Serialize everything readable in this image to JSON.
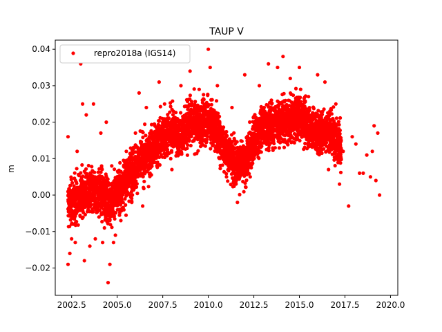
{
  "chart_data": {
    "type": "scatter",
    "title": "TAUP V",
    "xlabel": "",
    "ylabel": "m",
    "xlim": [
      2001.6,
      2020.4
    ],
    "ylim": [
      -0.0275,
      0.0425
    ],
    "x_ticks": [
      2002.5,
      2005.0,
      2007.5,
      2010.0,
      2012.5,
      2015.0,
      2017.5,
      2020.0
    ],
    "x_tick_labels": [
      "2002.5",
      "2005.0",
      "2007.5",
      "2010.0",
      "2012.5",
      "2015.0",
      "2017.5",
      "2020.0"
    ],
    "y_ticks": [
      -0.02,
      -0.01,
      0.0,
      0.01,
      0.02,
      0.03,
      0.04
    ],
    "y_tick_labels": [
      "−0.02",
      "−0.01",
      "0.00",
      "0.01",
      "0.02",
      "0.03",
      "0.04"
    ],
    "grid": false,
    "legend_position": "top-left",
    "series": [
      {
        "name": "repro2018a (IGS14)",
        "color": "#ff0000",
        "marker": "dot",
        "trend_x": [
          2002.3,
          2003.0,
          2004.0,
          2004.7,
          2005.0,
          2005.5,
          2006.0,
          2006.5,
          2007.0,
          2007.5,
          2008.0,
          2008.5,
          2009.0,
          2009.5,
          2010.0,
          2010.5,
          2011.0,
          2011.5,
          2012.0,
          2012.5,
          2013.0,
          2013.5,
          2014.0,
          2014.5,
          2015.0,
          2015.5,
          2016.0,
          2016.5,
          2017.0,
          2017.3
        ],
        "trend_y": [
          -0.003,
          0.0,
          0.001,
          -0.002,
          0.001,
          0.004,
          0.008,
          0.01,
          0.013,
          0.016,
          0.018,
          0.016,
          0.02,
          0.019,
          0.021,
          0.017,
          0.012,
          0.009,
          0.008,
          0.015,
          0.019,
          0.019,
          0.021,
          0.02,
          0.022,
          0.019,
          0.017,
          0.018,
          0.016,
          0.013
        ],
        "x": [
          2002.3,
          2002.3,
          2002.4,
          2002.5,
          2002.6,
          2002.7,
          2002.8,
          2003.0,
          2003.1,
          2003.2,
          2003.3,
          2003.5,
          2003.7,
          2003.8,
          2004.0,
          2004.1,
          2004.2,
          2004.3,
          2004.4,
          2004.5,
          2004.6,
          2004.7,
          2004.8,
          2004.9,
          2005.2,
          2005.5,
          2005.8,
          2006.0,
          2006.2,
          2006.4,
          2006.6,
          2006.8,
          2007.0,
          2007.3,
          2007.6,
          2008.0,
          2008.5,
          2009.0,
          2009.5,
          2010.0,
          2010.1,
          2010.5,
          2011.0,
          2011.3,
          2011.6,
          2012.0,
          2012.3,
          2012.8,
          2013.3,
          2013.8,
          2014.1,
          2014.5,
          2015.0,
          2015.5,
          2016.0,
          2016.4,
          2016.6,
          2017.0,
          2017.2,
          2017.4,
          2017.7,
          2017.9,
          2018.1,
          2018.3,
          2018.5,
          2018.7,
          2018.9,
          2019.0,
          2019.1,
          2019.2,
          2019.3,
          2019.4
        ],
        "y": [
          -0.019,
          0.016,
          -0.016,
          -0.012,
          -0.008,
          -0.013,
          0.012,
          0.036,
          0.025,
          -0.018,
          0.022,
          -0.014,
          0.025,
          -0.012,
          -0.006,
          0.017,
          -0.013,
          -0.009,
          0.02,
          -0.024,
          -0.019,
          0.008,
          -0.013,
          -0.011,
          -0.007,
          0.012,
          -0.002,
          0.017,
          0.028,
          -0.003,
          0.024,
          0.006,
          0.016,
          0.031,
          0.025,
          0.007,
          0.03,
          0.034,
          0.029,
          0.04,
          0.035,
          0.03,
          0.005,
          0.024,
          -0.002,
          0.033,
          0.005,
          0.03,
          0.036,
          0.035,
          0.038,
          0.032,
          0.035,
          0.027,
          0.033,
          0.031,
          0.007,
          0.025,
          0.003,
          0.012,
          -0.003,
          0.016,
          0.014,
          0.006,
          0.006,
          0.011,
          0.005,
          0.012,
          0.019,
          0.004,
          0.017,
          0.0
        ]
      }
    ]
  }
}
